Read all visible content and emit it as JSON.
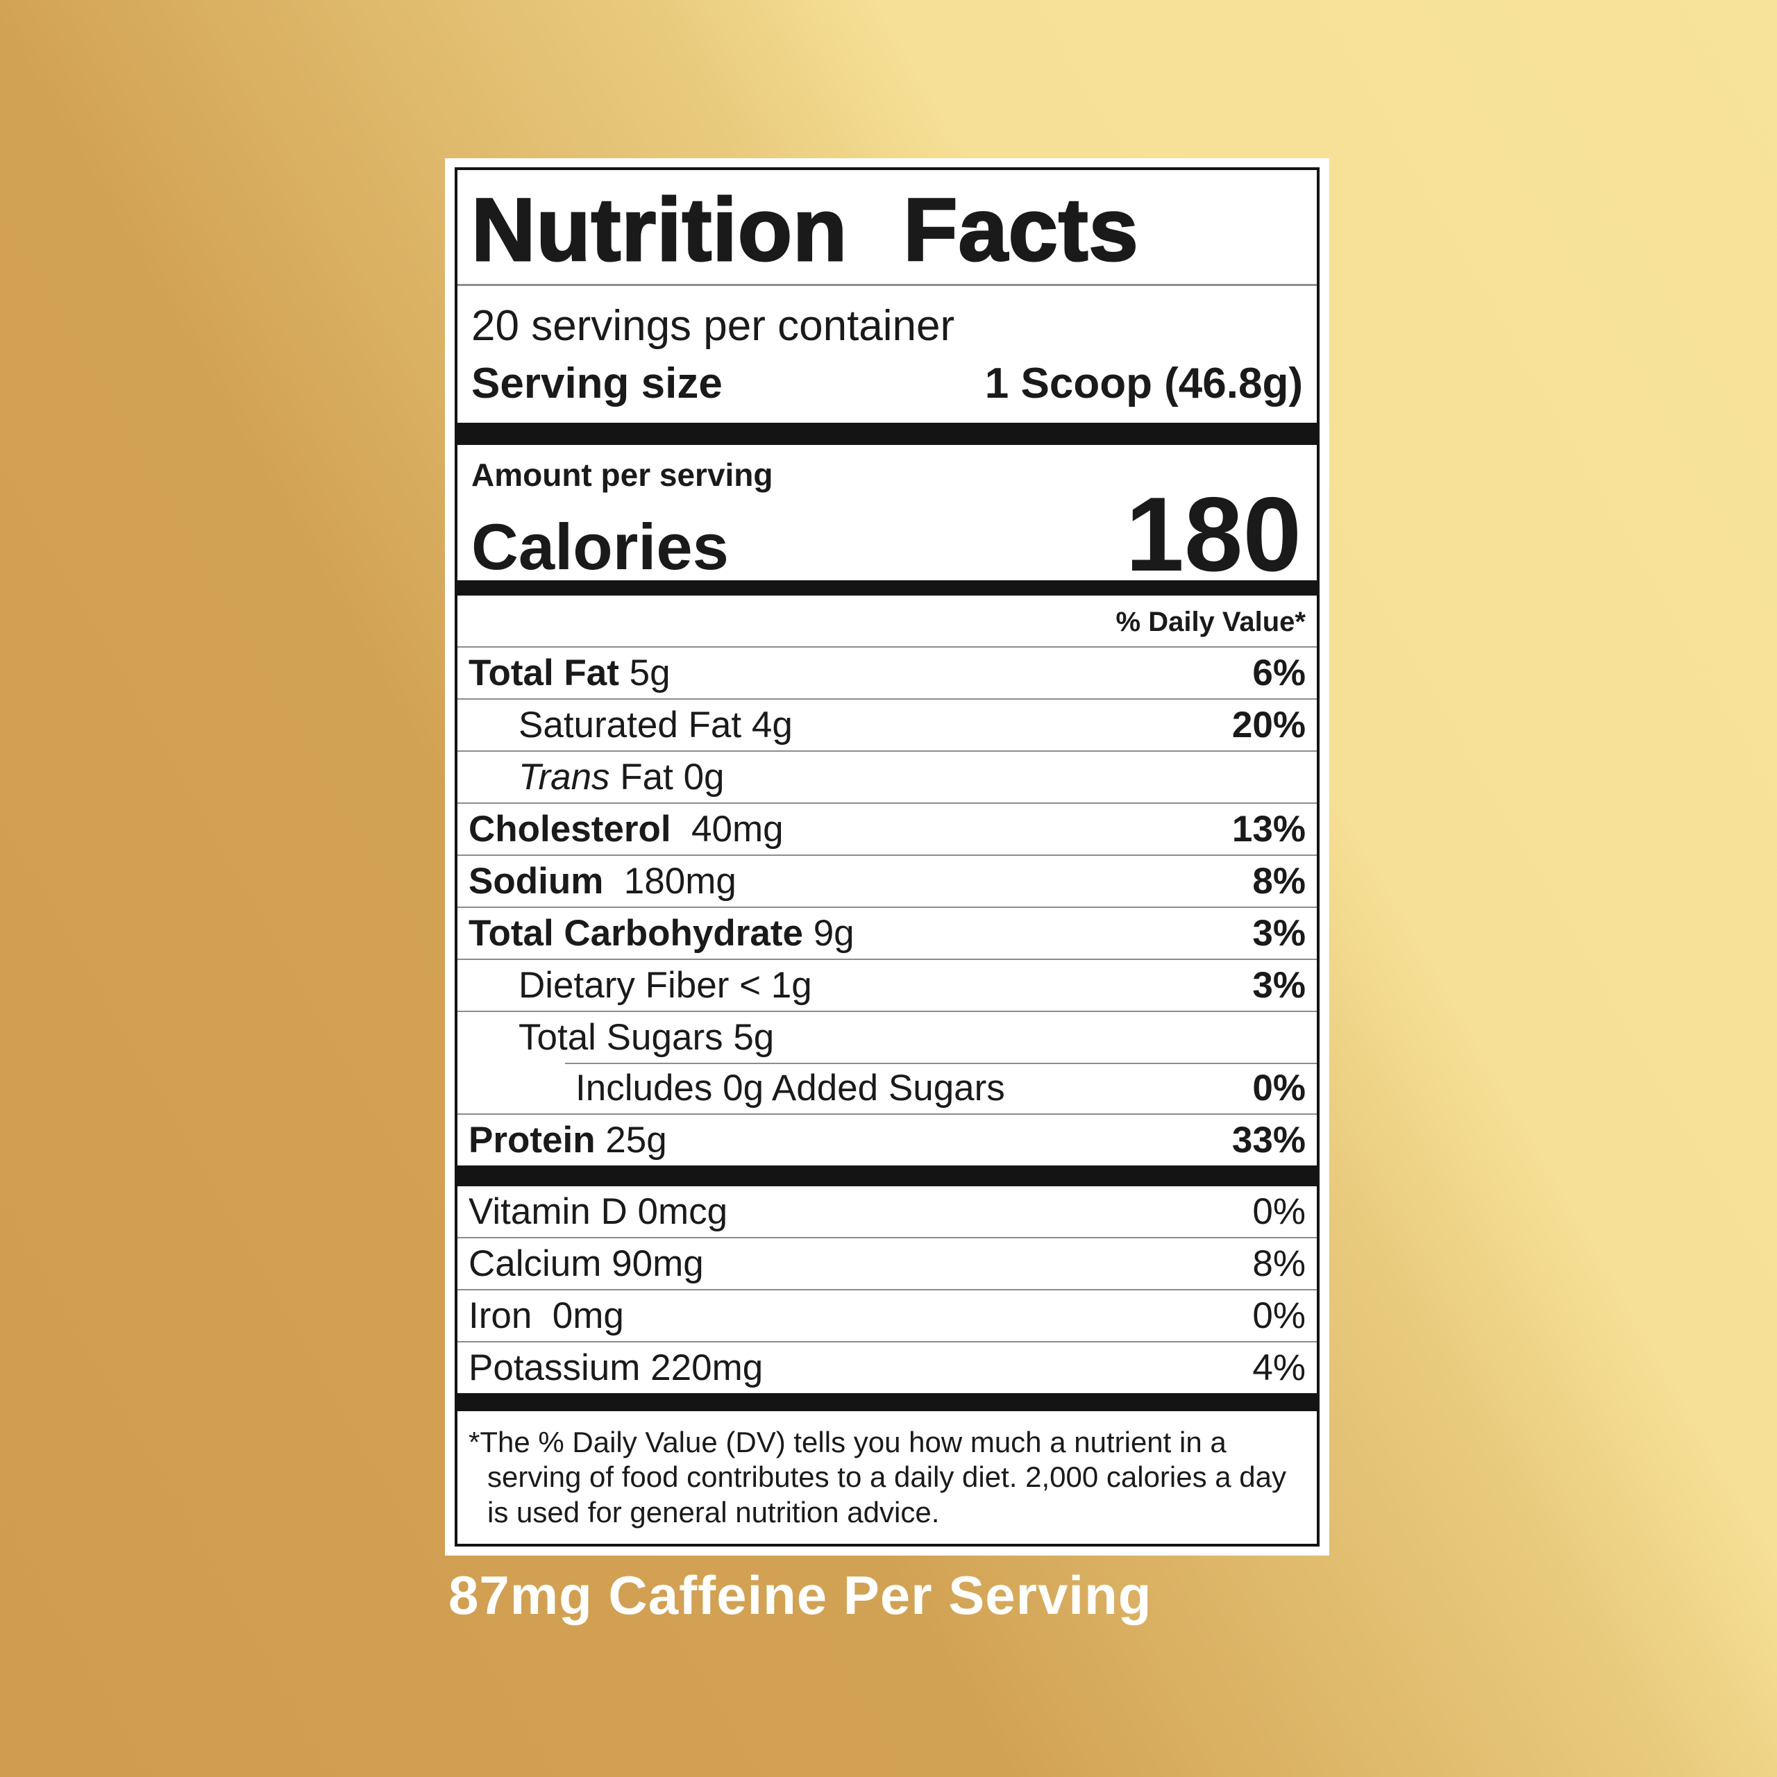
{
  "colors": {
    "background_gold_dark": "#d09c50",
    "background_gold_mid": "#d2a254",
    "background_gold_light": "#f8e39b",
    "label_bg": "#ffffff",
    "text": "#1a1a1a",
    "bar": "#141414",
    "hairline": "#8c8c8c",
    "caffeine_text": "#ffffff"
  },
  "label": {
    "title": "Nutrition Facts",
    "servings_per_container": "20 servings per container",
    "serving_size_label": "Serving size",
    "serving_size_value": "1 Scoop (46.8g)",
    "amount_per_serving": "Amount per serving",
    "calories_label": "Calories",
    "calories_value": "180",
    "daily_value_header": "% Daily Value*",
    "main_rows": [
      {
        "parts": [
          {
            "text": "Total Fat",
            "style": "bold"
          },
          {
            "text": " 5g",
            "style": "regular"
          }
        ],
        "percent": "6%",
        "percent_bold": true,
        "indent": 0,
        "rule": "none"
      },
      {
        "parts": [
          {
            "text": "Saturated Fat 4g",
            "style": "regular"
          }
        ],
        "percent": "20%",
        "percent_bold": true,
        "indent": 1,
        "rule": "full"
      },
      {
        "parts": [
          {
            "text": "Trans",
            "style": "italic"
          },
          {
            "text": " Fat 0g",
            "style": "regular"
          }
        ],
        "percent": "",
        "percent_bold": true,
        "indent": 1,
        "rule": "full"
      },
      {
        "parts": [
          {
            "text": "Cholesterol",
            "style": "bold"
          },
          {
            "text": "  40mg",
            "style": "regular"
          }
        ],
        "percent": "13%",
        "percent_bold": true,
        "indent": 0,
        "rule": "full"
      },
      {
        "parts": [
          {
            "text": "Sodium",
            "style": "bold"
          },
          {
            "text": "  180mg",
            "style": "regular"
          }
        ],
        "percent": "8%",
        "percent_bold": true,
        "indent": 0,
        "rule": "full"
      },
      {
        "parts": [
          {
            "text": "Total Carbohydrate",
            "style": "bold"
          },
          {
            "text": " 9g",
            "style": "regular"
          }
        ],
        "percent": "3%",
        "percent_bold": true,
        "indent": 0,
        "rule": "full"
      },
      {
        "parts": [
          {
            "text": "Dietary Fiber < 1g",
            "style": "regular"
          }
        ],
        "percent": "3%",
        "percent_bold": true,
        "indent": 1,
        "rule": "full"
      },
      {
        "parts": [
          {
            "text": "Total Sugars 5g",
            "style": "regular"
          }
        ],
        "percent": "",
        "percent_bold": true,
        "indent": 1,
        "rule": "full"
      },
      {
        "parts": [
          {
            "text": "Includes 0g Added Sugars",
            "style": "regular"
          }
        ],
        "percent": "0%",
        "percent_bold": true,
        "indent": 2,
        "rule": "inset"
      },
      {
        "parts": [
          {
            "text": "Protein",
            "style": "bold"
          },
          {
            "text": " 25g",
            "style": "regular"
          }
        ],
        "percent": "33%",
        "percent_bold": true,
        "indent": 0,
        "rule": "full"
      }
    ],
    "vitamin_rows": [
      {
        "parts": [
          {
            "text": "Vitamin D 0mcg",
            "style": "regular"
          }
        ],
        "percent": "0%",
        "percent_bold": false,
        "indent": 0,
        "rule": "none"
      },
      {
        "parts": [
          {
            "text": "Calcium 90mg",
            "style": "regular"
          }
        ],
        "percent": "8%",
        "percent_bold": false,
        "indent": 0,
        "rule": "full"
      },
      {
        "parts": [
          {
            "text": "Iron  0mg",
            "style": "regular"
          }
        ],
        "percent": "0%",
        "percent_bold": false,
        "indent": 0,
        "rule": "full"
      },
      {
        "parts": [
          {
            "text": "Potassium 220mg",
            "style": "regular"
          }
        ],
        "percent": "4%",
        "percent_bold": false,
        "indent": 0,
        "rule": "full"
      }
    ],
    "footnote": "*The % Daily Value (DV) tells you how much a nutrient in a serving of food contributes to a daily diet. 2,000 calories a day is used for general nutrition advice."
  },
  "caffeine_note": "87mg Caffeine Per Serving"
}
